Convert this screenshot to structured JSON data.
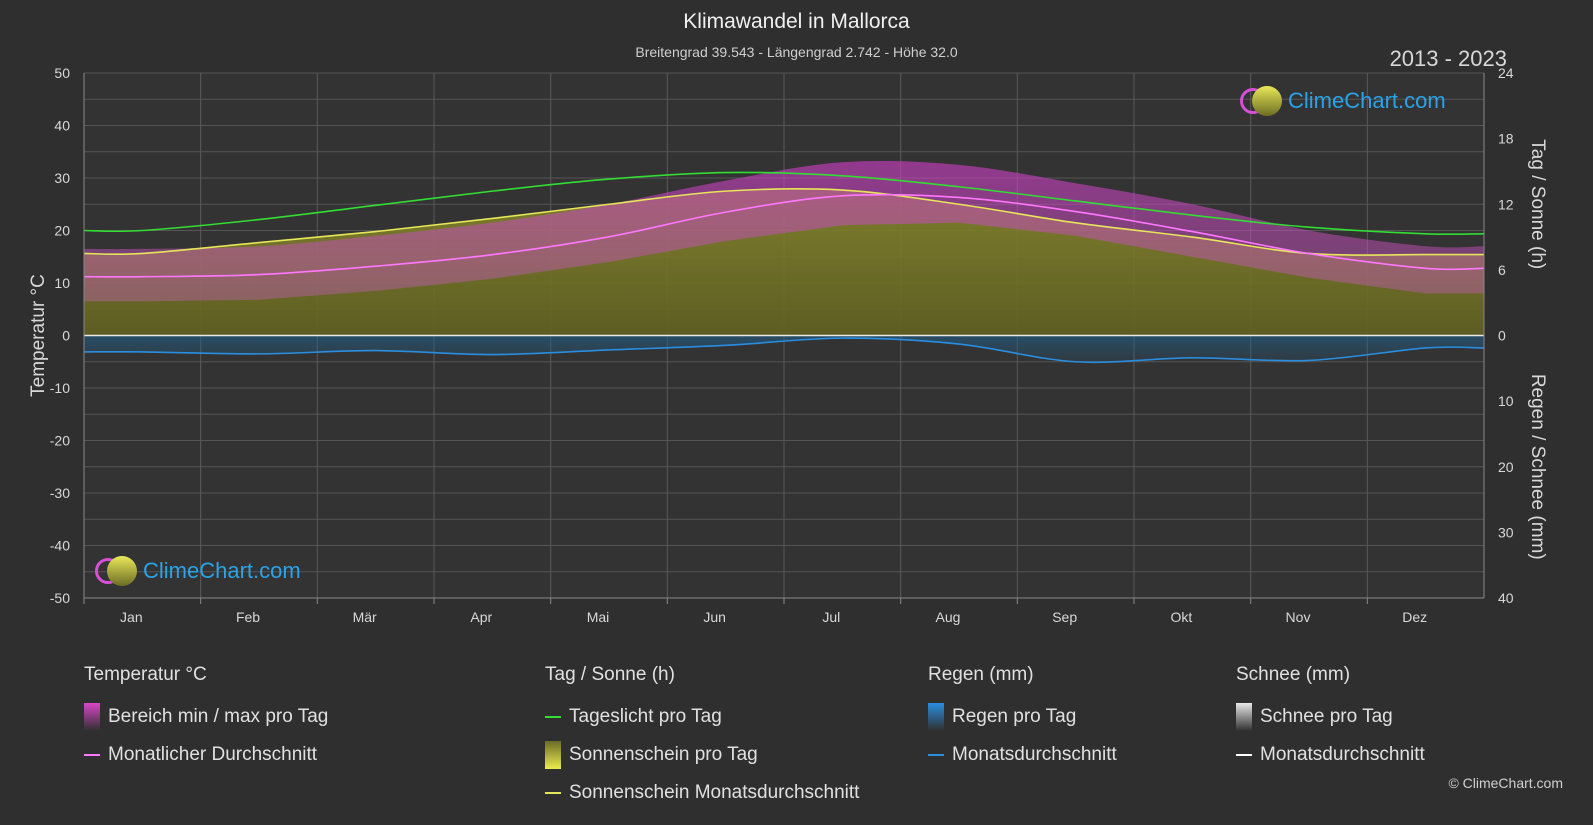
{
  "header": {
    "title": "Klimawandel in Mallorca",
    "subtitle": "Breitengrad 39.543 - Längengrad 2.742 - Höhe 32.0",
    "years": "2013 - 2023"
  },
  "logo_text": "ClimeChart.com",
  "copyright": "© ClimeChart.com",
  "chart_data": {
    "type": "area",
    "categories": [
      "Jan",
      "Feb",
      "Mär",
      "Apr",
      "Mai",
      "Jun",
      "Jul",
      "Aug",
      "Sep",
      "Okt",
      "Nov",
      "Dez"
    ],
    "y_left": {
      "label": "Temperatur °C",
      "ylim": [
        -50,
        50
      ],
      "ticks": [
        "50",
        "40",
        "30",
        "20",
        "10",
        "0",
        "-10",
        "-20",
        "-30",
        "-40",
        "-50"
      ]
    },
    "y_right_top": {
      "label": "Tag / Sonne (h)",
      "ylim": [
        0,
        24
      ],
      "ticks": [
        "24",
        "18",
        "12",
        "6",
        "0"
      ]
    },
    "y_right_bottom": {
      "label": "Regen / Schnee (mm)",
      "ylim": [
        0,
        40
      ],
      "ticks": [
        "10",
        "20",
        "30",
        "40"
      ]
    },
    "series": [
      {
        "name": "Tageslicht pro Tag",
        "unit": "h",
        "color": "#33dd33",
        "values": [
          9.6,
          10.6,
          11.9,
          13.2,
          14.3,
          14.9,
          14.6,
          13.6,
          12.3,
          11.0,
          9.9,
          9.3
        ]
      },
      {
        "name": "Sonnenschein Monatsdurchschnitt",
        "unit": "h",
        "color": "#e6e65a",
        "values": [
          7.5,
          8.5,
          9.5,
          10.7,
          12.0,
          13.2,
          13.3,
          12.0,
          10.3,
          9.0,
          7.5,
          7.4
        ]
      },
      {
        "name": "Monatlicher Durchschnitt",
        "unit": "°C",
        "color": "#ff77ff",
        "values": [
          11.2,
          11.6,
          13.2,
          15.4,
          18.8,
          23.5,
          26.6,
          26.3,
          23.6,
          19.8,
          15.6,
          12.8
        ]
      },
      {
        "name": "Bereich min / max pro Tag",
        "unit": "°C",
        "color": "#d946c8",
        "min": [
          6.5,
          6.8,
          8.5,
          10.8,
          14.0,
          18.0,
          21.0,
          21.5,
          19.0,
          15.0,
          11.0,
          8.0
        ],
        "max": [
          16.5,
          17.0,
          19.0,
          21.5,
          25.0,
          29.5,
          33.0,
          32.5,
          29.0,
          25.0,
          20.0,
          17.0
        ]
      },
      {
        "name": "Regen Monatsdurchschnitt",
        "unit": "mm",
        "color": "#2a8ee0",
        "values": [
          2.5,
          2.8,
          2.3,
          2.9,
          2.2,
          1.5,
          0.4,
          1.3,
          4.0,
          3.4,
          3.8,
          1.9
        ]
      }
    ]
  },
  "legend": {
    "groups": [
      {
        "title": "Temperatur °C",
        "items": [
          {
            "label": "Bereich min / max pro Tag",
            "kind": "box",
            "color": "#d946c8"
          },
          {
            "label": "Monatlicher Durchschnitt",
            "kind": "line",
            "color": "#ff77ff"
          }
        ]
      },
      {
        "title": "Tag / Sonne (h)",
        "items": [
          {
            "label": "Tageslicht pro Tag",
            "kind": "line",
            "color": "#33dd33"
          },
          {
            "label": "Sonnenschein pro Tag",
            "kind": "box",
            "color": "#e6e65a"
          },
          {
            "label": "Sonnenschein Monatsdurchschnitt",
            "kind": "line",
            "color": "#e6e65a"
          }
        ]
      },
      {
        "title": "Regen (mm)",
        "items": [
          {
            "label": "Regen pro Tag",
            "kind": "box",
            "color": "#2a8ee0"
          },
          {
            "label": "Monatsdurchschnitt",
            "kind": "line",
            "color": "#2a8ee0"
          }
        ]
      },
      {
        "title": "Schnee (mm)",
        "items": [
          {
            "label": "Schnee pro Tag",
            "kind": "box",
            "color": "#e8e8e8"
          },
          {
            "label": "Monatsdurchschnitt",
            "kind": "line",
            "color": "#ffffff"
          }
        ]
      }
    ]
  }
}
